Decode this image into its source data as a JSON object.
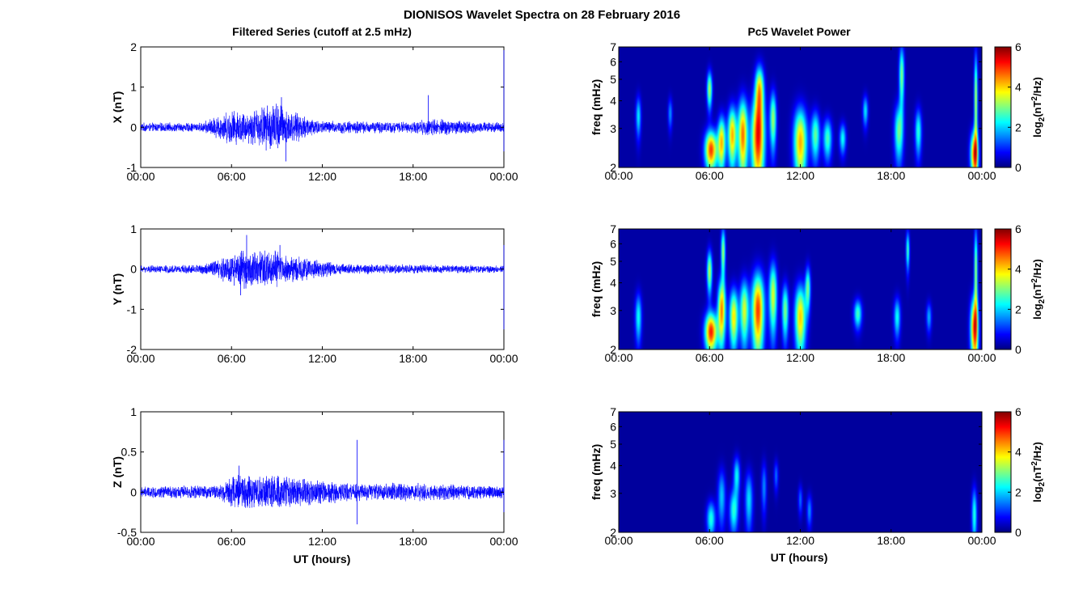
{
  "figure": {
    "title": "DIONISOS Wavelet Spectra on 28 February 2016",
    "left_title": "Filtered Series (cutoff at 2.5 mHz)",
    "right_title": "Pc5 Wavelet Power",
    "xlabel": "UT (hours)"
  },
  "chart_data": [
    {
      "type": "line",
      "component": "X",
      "ylabel": "X (nT)",
      "xlim": [
        "00:00",
        "24:00"
      ],
      "ylim": [
        -1,
        2
      ],
      "x_ticks": [
        "00:00",
        "06:00",
        "12:00",
        "18:00",
        "00:00"
      ],
      "y_ticks": [
        "-1",
        "0",
        "1",
        "2"
      ],
      "series_color": "#0000ff",
      "envelope": [
        {
          "t": 0,
          "amp": 0.1
        },
        {
          "t": 4,
          "amp": 0.1
        },
        {
          "t": 6,
          "amp": 0.4
        },
        {
          "t": 7,
          "amp": 0.35
        },
        {
          "t": 9,
          "amp": 0.6
        },
        {
          "t": 10,
          "amp": 0.35
        },
        {
          "t": 12,
          "amp": 0.15
        },
        {
          "t": 18,
          "amp": 0.12
        },
        {
          "t": 19,
          "amp": 0.2
        },
        {
          "t": 24,
          "amp": 0.1
        }
      ],
      "spikes": [
        {
          "t": 9.3,
          "y": 0.75
        },
        {
          "t": 9.6,
          "y": -0.85
        },
        {
          "t": 6.0,
          "y": -0.35
        },
        {
          "t": 19.0,
          "y": 0.8
        },
        {
          "t": 24.0,
          "y": 2.0
        },
        {
          "t": 24.0,
          "y": -0.6
        }
      ]
    },
    {
      "type": "line",
      "component": "Y",
      "ylabel": "Y (nT)",
      "xlim": [
        "00:00",
        "24:00"
      ],
      "ylim": [
        -2,
        1
      ],
      "x_ticks": [
        "00:00",
        "06:00",
        "12:00",
        "18:00",
        "00:00"
      ],
      "y_ticks": [
        "-2",
        "-1",
        "0",
        "1"
      ],
      "series_color": "#0000ff",
      "envelope": [
        {
          "t": 0,
          "amp": 0.08
        },
        {
          "t": 4,
          "amp": 0.1
        },
        {
          "t": 6,
          "amp": 0.35
        },
        {
          "t": 7,
          "amp": 0.45
        },
        {
          "t": 9,
          "amp": 0.4
        },
        {
          "t": 11,
          "amp": 0.25
        },
        {
          "t": 13,
          "amp": 0.12
        },
        {
          "t": 18,
          "amp": 0.1
        },
        {
          "t": 24,
          "amp": 0.08
        }
      ],
      "spikes": [
        {
          "t": 7.0,
          "y": 0.85
        },
        {
          "t": 6.6,
          "y": -0.65
        },
        {
          "t": 9.2,
          "y": 0.6
        },
        {
          "t": 24.0,
          "y": 0.6
        },
        {
          "t": 24.0,
          "y": -1.5
        }
      ]
    },
    {
      "type": "line",
      "component": "Z",
      "ylabel": "Z (nT)",
      "xlim": [
        "00:00",
        "24:00"
      ],
      "ylim": [
        -0.5,
        1
      ],
      "x_ticks": [
        "00:00",
        "06:00",
        "12:00",
        "18:00",
        "00:00"
      ],
      "y_ticks": [
        "-0.5",
        "0",
        "0.5",
        "1"
      ],
      "series_color": "#0000ff",
      "envelope": [
        {
          "t": 0,
          "amp": 0.06
        },
        {
          "t": 5,
          "amp": 0.08
        },
        {
          "t": 6.5,
          "amp": 0.22
        },
        {
          "t": 9,
          "amp": 0.18
        },
        {
          "t": 11,
          "amp": 0.15
        },
        {
          "t": 14,
          "amp": 0.1
        },
        {
          "t": 18,
          "amp": 0.1
        },
        {
          "t": 24,
          "amp": 0.07
        }
      ],
      "spikes": [
        {
          "t": 14.3,
          "y": 0.65
        },
        {
          "t": 14.3,
          "y": -0.4
        },
        {
          "t": 6.5,
          "y": 0.33
        },
        {
          "t": 24.0,
          "y": 0.65
        },
        {
          "t": 24.0,
          "y": -0.25
        }
      ]
    },
    {
      "type": "heatmap",
      "component": "X",
      "ylabel": "freq (mHz)",
      "xlim": [
        "00:00",
        "24:00"
      ],
      "ylim_mhz": [
        2,
        7
      ],
      "y_scale": "log",
      "x_ticks": [
        "00:00",
        "06:00",
        "12:00",
        "18:00",
        "00:00"
      ],
      "y_ticks": [
        "2",
        "3",
        "4",
        "5",
        "6",
        "7"
      ],
      "colorbar": {
        "label": "log2(nT^2/Hz)",
        "range": [
          0,
          6
        ],
        "ticks": [
          "0",
          "2",
          "4",
          "6"
        ],
        "colormap": "jet"
      },
      "background_level": 0.25,
      "blobs": [
        {
          "t": 6.1,
          "f": 2.4,
          "sigma_t": 0.28,
          "sigma_f": 0.35,
          "level": 5.4
        },
        {
          "t": 6.0,
          "f": 4.5,
          "sigma_t": 0.12,
          "sigma_f": 0.6,
          "level": 3.5
        },
        {
          "t": 6.8,
          "f": 2.6,
          "sigma_t": 0.18,
          "sigma_f": 0.5,
          "level": 4.4
        },
        {
          "t": 7.5,
          "f": 2.8,
          "sigma_t": 0.2,
          "sigma_f": 0.6,
          "level": 4.6
        },
        {
          "t": 8.2,
          "f": 2.8,
          "sigma_t": 0.22,
          "sigma_f": 0.8,
          "level": 5.0
        },
        {
          "t": 9.2,
          "f": 2.7,
          "sigma_t": 0.3,
          "sigma_f": 0.9,
          "level": 5.6
        },
        {
          "t": 9.3,
          "f": 4.5,
          "sigma_t": 0.2,
          "sigma_f": 0.8,
          "level": 4.2
        },
        {
          "t": 10.2,
          "f": 3.3,
          "sigma_t": 0.15,
          "sigma_f": 0.7,
          "level": 3.4
        },
        {
          "t": 12.0,
          "f": 2.6,
          "sigma_t": 0.3,
          "sigma_f": 0.7,
          "level": 4.6
        },
        {
          "t": 13.0,
          "f": 2.8,
          "sigma_t": 0.2,
          "sigma_f": 0.5,
          "level": 3.0
        },
        {
          "t": 13.8,
          "f": 2.7,
          "sigma_t": 0.2,
          "sigma_f": 0.4,
          "level": 2.8
        },
        {
          "t": 14.8,
          "f": 2.7,
          "sigma_t": 0.15,
          "sigma_f": 0.3,
          "level": 2.4
        },
        {
          "t": 16.3,
          "f": 3.6,
          "sigma_t": 0.12,
          "sigma_f": 0.4,
          "level": 2.2
        },
        {
          "t": 18.5,
          "f": 2.9,
          "sigma_t": 0.2,
          "sigma_f": 0.6,
          "level": 3.0
        },
        {
          "t": 18.7,
          "f": 5.2,
          "sigma_t": 0.12,
          "sigma_f": 1.2,
          "level": 3.2
        },
        {
          "t": 19.8,
          "f": 2.9,
          "sigma_t": 0.15,
          "sigma_f": 0.5,
          "level": 2.6
        },
        {
          "t": 23.5,
          "f": 2.3,
          "sigma_t": 0.18,
          "sigma_f": 0.4,
          "level": 5.0
        },
        {
          "t": 23.6,
          "f": 4.0,
          "sigma_t": 0.08,
          "sigma_f": 1.6,
          "level": 3.6
        },
        {
          "t": 1.3,
          "f": 3.4,
          "sigma_t": 0.12,
          "sigma_f": 0.5,
          "level": 2.2
        },
        {
          "t": 3.4,
          "f": 3.5,
          "sigma_t": 0.1,
          "sigma_f": 0.4,
          "level": 1.6
        }
      ]
    },
    {
      "type": "heatmap",
      "component": "Y",
      "ylabel": "freq (mHz)",
      "xlim": [
        "00:00",
        "24:00"
      ],
      "ylim_mhz": [
        2,
        7
      ],
      "y_scale": "log",
      "x_ticks": [
        "00:00",
        "06:00",
        "12:00",
        "18:00",
        "00:00"
      ],
      "y_ticks": [
        "2",
        "3",
        "4",
        "5",
        "6",
        "7"
      ],
      "colorbar": {
        "label": "log2(nT^2/Hz)",
        "range": [
          0,
          6
        ],
        "ticks": [
          "0",
          "2",
          "4",
          "6"
        ],
        "colormap": "jet"
      },
      "background_level": 0.25,
      "blobs": [
        {
          "t": 6.1,
          "f": 2.4,
          "sigma_t": 0.28,
          "sigma_f": 0.35,
          "level": 5.6
        },
        {
          "t": 6.0,
          "f": 4.5,
          "sigma_t": 0.12,
          "sigma_f": 0.7,
          "level": 3.6
        },
        {
          "t": 6.8,
          "f": 3.0,
          "sigma_t": 0.18,
          "sigma_f": 0.7,
          "level": 4.8
        },
        {
          "t": 6.9,
          "f": 5.5,
          "sigma_t": 0.1,
          "sigma_f": 1.0,
          "level": 3.4
        },
        {
          "t": 7.6,
          "f": 2.8,
          "sigma_t": 0.2,
          "sigma_f": 0.6,
          "level": 4.2
        },
        {
          "t": 8.3,
          "f": 3.0,
          "sigma_t": 0.2,
          "sigma_f": 0.7,
          "level": 3.8
        },
        {
          "t": 9.2,
          "f": 3.0,
          "sigma_t": 0.28,
          "sigma_f": 0.9,
          "level": 5.4
        },
        {
          "t": 10.2,
          "f": 3.5,
          "sigma_t": 0.18,
          "sigma_f": 0.9,
          "level": 3.8
        },
        {
          "t": 11.0,
          "f": 3.0,
          "sigma_t": 0.15,
          "sigma_f": 0.6,
          "level": 3.2
        },
        {
          "t": 12.0,
          "f": 2.8,
          "sigma_t": 0.25,
          "sigma_f": 0.7,
          "level": 4.4
        },
        {
          "t": 12.5,
          "f": 3.8,
          "sigma_t": 0.12,
          "sigma_f": 0.6,
          "level": 3.0
        },
        {
          "t": 15.8,
          "f": 2.9,
          "sigma_t": 0.18,
          "sigma_f": 0.3,
          "level": 2.8
        },
        {
          "t": 18.4,
          "f": 2.8,
          "sigma_t": 0.15,
          "sigma_f": 0.4,
          "level": 2.4
        },
        {
          "t": 19.1,
          "f": 5.6,
          "sigma_t": 0.08,
          "sigma_f": 0.8,
          "level": 2.8
        },
        {
          "t": 20.5,
          "f": 2.8,
          "sigma_t": 0.12,
          "sigma_f": 0.3,
          "level": 1.8
        },
        {
          "t": 23.5,
          "f": 2.5,
          "sigma_t": 0.18,
          "sigma_f": 0.6,
          "level": 5.2
        },
        {
          "t": 23.6,
          "f": 4.5,
          "sigma_t": 0.08,
          "sigma_f": 1.6,
          "level": 3.4
        },
        {
          "t": 1.3,
          "f": 2.8,
          "sigma_t": 0.15,
          "sigma_f": 0.5,
          "level": 2.4
        }
      ]
    },
    {
      "type": "heatmap",
      "component": "Z",
      "ylabel": "freq (mHz)",
      "xlim": [
        "00:00",
        "24:00"
      ],
      "ylim_mhz": [
        2,
        7
      ],
      "y_scale": "log",
      "x_ticks": [
        "00:00",
        "06:00",
        "12:00",
        "18:00",
        "00:00"
      ],
      "y_ticks": [
        "2",
        "3",
        "4",
        "5",
        "6",
        "7"
      ],
      "colorbar": {
        "label": "log2(nT^2/Hz)",
        "range": [
          0,
          6
        ],
        "ticks": [
          "0",
          "2",
          "4",
          "6"
        ],
        "colormap": "jet"
      },
      "background_level": 0.2,
      "blobs": [
        {
          "t": 6.1,
          "f": 2.3,
          "sigma_t": 0.2,
          "sigma_f": 0.3,
          "level": 2.6
        },
        {
          "t": 6.8,
          "f": 2.9,
          "sigma_t": 0.18,
          "sigma_f": 0.6,
          "level": 2.0
        },
        {
          "t": 7.6,
          "f": 2.5,
          "sigma_t": 0.2,
          "sigma_f": 0.4,
          "level": 2.6
        },
        {
          "t": 7.8,
          "f": 3.6,
          "sigma_t": 0.15,
          "sigma_f": 0.5,
          "level": 2.4
        },
        {
          "t": 8.6,
          "f": 2.8,
          "sigma_t": 0.18,
          "sigma_f": 0.6,
          "level": 2.2
        },
        {
          "t": 9.6,
          "f": 3.2,
          "sigma_t": 0.12,
          "sigma_f": 0.6,
          "level": 1.6
        },
        {
          "t": 10.4,
          "f": 3.6,
          "sigma_t": 0.1,
          "sigma_f": 0.4,
          "level": 1.4
        },
        {
          "t": 12.0,
          "f": 2.8,
          "sigma_t": 0.1,
          "sigma_f": 0.3,
          "level": 1.4
        },
        {
          "t": 12.6,
          "f": 2.5,
          "sigma_t": 0.12,
          "sigma_f": 0.3,
          "level": 1.6
        },
        {
          "t": 23.5,
          "f": 2.4,
          "sigma_t": 0.12,
          "sigma_f": 0.5,
          "level": 2.6
        }
      ]
    }
  ]
}
